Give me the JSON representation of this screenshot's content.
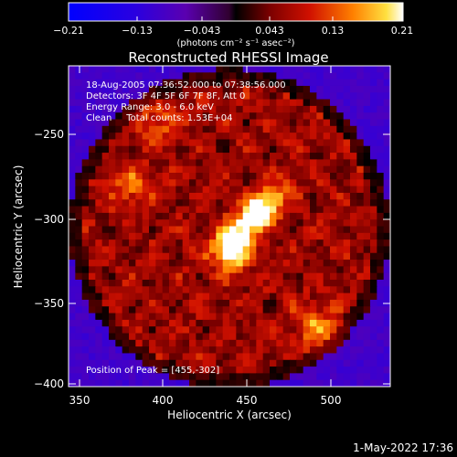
{
  "chart_data": {
    "type": "heatmap",
    "title": "Reconstructed RHESSI Image",
    "xlabel": "Heliocentric X (arcsec)",
    "ylabel": "Heliocentric Y (arcsec)",
    "xlim": [
      343,
      535
    ],
    "ylim": [
      -403,
      -214
    ],
    "x_ticks": [
      350,
      400,
      450,
      500
    ],
    "y_ticks": [
      -250,
      -300,
      -350,
      -400
    ],
    "x_tick_labels": [
      "350",
      "400",
      "450",
      "500"
    ],
    "y_tick_labels": [
      "−250",
      "−300",
      "−350",
      "−400"
    ],
    "colorbar": {
      "min": -0.21,
      "max": 0.21,
      "tick_labels": [
        "−0.21",
        "−0.13",
        "−0.043",
        "0.043",
        "0.13",
        "0.21"
      ],
      "unit_label": "(photons cm⁻² s⁻¹ asec⁻²)"
    },
    "annotations": [
      "18-Aug-2005 07:36:52.000 to 07:38:56.000",
      "Detectors: 3F 4F 5F 6F 7F 8F, Att 0",
      "Energy Range: 3.0 - 6.0 keV",
      "Clean     Total counts: 1.53E+04"
    ],
    "peak_label": "Position of Peak = [455,-302]",
    "peak": [
      455,
      -302
    ],
    "timestamp": "1-May-2022 17:36",
    "sources": [
      {
        "x": 455,
        "y": -302,
        "peak": 0.21
      },
      {
        "x": 440,
        "y": -323,
        "peak": 0.17
      },
      {
        "x": 490,
        "y": -368,
        "peak": 0.09
      },
      {
        "x": 380,
        "y": -285,
        "peak": 0.07
      },
      {
        "x": 395,
        "y": -247,
        "peak": 0.06
      }
    ]
  }
}
